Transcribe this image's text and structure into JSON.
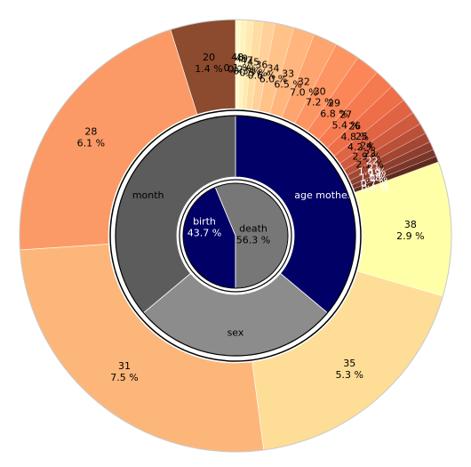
{
  "chart_data": {
    "type": "sunburst",
    "center": {
      "slices": [
        {
          "name": "birth",
          "percent": "43.7 %",
          "fraction": 0.437,
          "color": "#000066"
        },
        {
          "name": "death",
          "percent": "56.3 %",
          "fraction": 0.563,
          "color": "#777777"
        }
      ]
    },
    "middle": {
      "slices": [
        {
          "name": "age mother",
          "fraction": 0.361,
          "color": "#000066"
        },
        {
          "name": "sex",
          "fraction": 0.278,
          "color": "#8c8c8c"
        },
        {
          "name": "month",
          "fraction": 0.361,
          "color": "#5c5c5c"
        }
      ]
    },
    "outer": {
      "start_angle_deg": 70,
      "end_angle_deg": 360,
      "direction": "clockwise",
      "slices": [
        {
          "label": "38",
          "percent": "2.9 %",
          "value": 2.9,
          "color": "#ffffa8"
        },
        {
          "label": "35",
          "percent": "5.3 %",
          "value": 5.3,
          "color": "#fedd96"
        },
        {
          "label": "31",
          "percent": "7.5 %",
          "value": 7.5,
          "color": "#fdb67a"
        },
        {
          "label": "28",
          "percent": "6.1 %",
          "value": 6.1,
          "color": "#fb9a66"
        },
        {
          "label": "20",
          "percent": "1.4 %",
          "value": 1.4,
          "color": "#8c4a2e"
        }
      ]
    },
    "fan": {
      "start_angle_deg": 0,
      "end_angle_deg": 70,
      "labels": [
        "48",
        "49",
        "47",
        "45",
        "36",
        "34",
        "33",
        "32",
        "30",
        "29",
        "27",
        "26",
        "25",
        "24",
        "23",
        "22",
        "21",
        "19",
        "18"
      ],
      "percent_labels": [
        "0.1 %",
        "0.2 %",
        "0.3 %",
        "0.5 %",
        "0.6 %",
        "6.0 %",
        "6.5 %",
        "7.0 %",
        "7.2 %",
        "6.8 %",
        "5.4 %",
        "4.8 %",
        "4.2 %",
        "2.9 %",
        "2.1 %",
        "1.6 %",
        "1.0 %",
        "0.7 %",
        "0.4 %"
      ],
      "colors": [
        "#fff9cc",
        "#fff3bd",
        "#ffeab0",
        "#ffdca0",
        "#ffd099",
        "#ffc38a",
        "#ffb57c",
        "#fea46e",
        "#fd9563",
        "#fb8758",
        "#f67a50",
        "#ee6e48",
        "#e06444",
        "#cf5a3e",
        "#bb5038",
        "#a34632",
        "#8e3e2e",
        "#7a3628",
        "#5e2a20"
      ]
    }
  }
}
